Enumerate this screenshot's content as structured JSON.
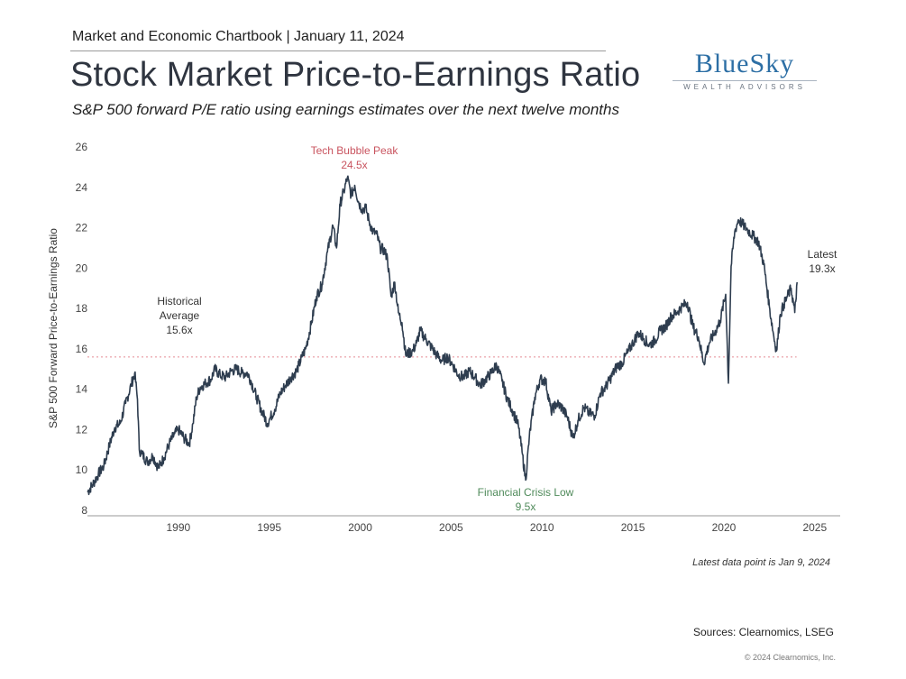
{
  "header": {
    "top_line": "Market and Economic Chartbook | January 11, 2024",
    "title": "Stock Market Price-to-Earnings Ratio",
    "subtitle": "S&P 500 forward P/E ratio using earnings estimates over the next twelve months"
  },
  "logo": {
    "main": "BlueSky",
    "sub": "WEALTH ADVISORS"
  },
  "footer": {
    "note": "Latest data point is Jan 9, 2024",
    "sources": "Sources: Clearnomics, LSEG",
    "copyright": "© 2024 Clearnomics, Inc."
  },
  "colors": {
    "line": "#2e3d4f",
    "average": "#e58a95",
    "peak": "#c9545f",
    "low": "#4f8a5a",
    "axis": "#555555"
  },
  "chart_data": {
    "type": "line",
    "ylabel": "S&P 500 Forward Price-to-Earnings Ratio",
    "xlabel": "",
    "xlim": [
      1985.0,
      2026.2
    ],
    "ylim": [
      8,
      26
    ],
    "x_ticks": [
      1990,
      1995,
      2000,
      2005,
      2010,
      2015,
      2020,
      2025
    ],
    "y_ticks": [
      8,
      10,
      12,
      14,
      16,
      18,
      20,
      22,
      24,
      26
    ],
    "average": {
      "value": 15.6,
      "label_lines": [
        "Historical",
        "Average",
        "15.6x"
      ]
    },
    "annotations": [
      {
        "id": "peak",
        "lines": [
          "Tech Bubble Peak",
          "24.5x"
        ]
      },
      {
        "id": "low",
        "lines": [
          "Financial Crisis Low",
          "9.5x"
        ]
      },
      {
        "id": "latest",
        "lines": [
          "Latest",
          "19.3x"
        ]
      }
    ],
    "series": [
      {
        "x": [
          1985.0,
          1985.3,
          1985.6,
          1985.9,
          1986.2,
          1986.5,
          1986.8,
          1987.1,
          1987.4,
          1987.6,
          1987.75,
          1987.85,
          1988.0,
          1988.3,
          1988.6,
          1988.9,
          1989.2,
          1989.5,
          1989.8,
          1990.0,
          1990.3,
          1990.6,
          1990.8,
          1991.0,
          1991.2,
          1991.5,
          1991.8,
          1992.0,
          1992.3,
          1992.6,
          1992.9,
          1993.2,
          1993.5,
          1993.8,
          1994.0,
          1994.3,
          1994.6,
          1994.9,
          1995.0,
          1995.3,
          1995.6,
          1995.9,
          1996.2,
          1996.5,
          1996.8,
          1997.0,
          1997.3,
          1997.6,
          1997.9,
          1998.2,
          1998.5,
          1998.7,
          1998.9,
          1999.1,
          1999.3,
          1999.5,
          1999.7,
          1999.9,
          2000.1,
          2000.3,
          2000.5,
          2000.7,
          2000.9,
          2001.1,
          2001.3,
          2001.5,
          2001.7,
          2001.9,
          2002.1,
          2002.3,
          2002.5,
          2002.7,
          2002.9,
          2003.1,
          2003.3,
          2003.6,
          2003.9,
          2004.2,
          2004.5,
          2004.8,
          2005.1,
          2005.4,
          2005.7,
          2006.0,
          2006.3,
          2006.6,
          2006.9,
          2007.2,
          2007.5,
          2007.8,
          2008.1,
          2008.4,
          2008.7,
          2008.9,
          2009.1,
          2009.3,
          2009.6,
          2009.9,
          2010.2,
          2010.5,
          2010.8,
          2011.1,
          2011.4,
          2011.7,
          2012.0,
          2012.3,
          2012.6,
          2012.9,
          2013.2,
          2013.5,
          2013.8,
          2014.1,
          2014.4,
          2014.7,
          2015.0,
          2015.3,
          2015.6,
          2015.9,
          2016.2,
          2016.5,
          2016.8,
          2017.1,
          2017.4,
          2017.7,
          2018.0,
          2018.3,
          2018.6,
          2018.9,
          2019.2,
          2019.5,
          2019.8,
          2020.1,
          2020.25,
          2020.4,
          2020.6,
          2020.8,
          2021.0,
          2021.3,
          2021.6,
          2021.9,
          2022.2,
          2022.5,
          2022.75,
          2022.9,
          2023.1,
          2023.3,
          2023.5,
          2023.7,
          2023.9,
          2024.03
        ],
        "y": [
          8.9,
          9.3,
          9.8,
          10.2,
          11.2,
          12.1,
          12.3,
          13.3,
          14.2,
          14.8,
          13.5,
          11.0,
          10.8,
          10.4,
          10.7,
          10.1,
          10.6,
          11.3,
          11.8,
          12.0,
          11.6,
          11.3,
          12.3,
          13.6,
          14.1,
          14.3,
          14.5,
          15.0,
          14.7,
          14.6,
          14.9,
          15.0,
          14.8,
          14.8,
          14.4,
          13.6,
          12.9,
          12.3,
          12.5,
          13.0,
          13.8,
          14.2,
          14.6,
          14.9,
          15.6,
          16.0,
          17.2,
          18.6,
          19.2,
          20.8,
          22.1,
          21.0,
          23.2,
          23.8,
          24.5,
          23.6,
          24.1,
          23.3,
          22.9,
          23.0,
          22.3,
          21.8,
          21.7,
          21.0,
          20.9,
          20.5,
          18.6,
          19.3,
          17.8,
          17.3,
          15.7,
          15.8,
          15.9,
          16.3,
          16.9,
          16.5,
          16.1,
          15.7,
          15.4,
          15.6,
          15.2,
          14.7,
          14.6,
          14.9,
          14.6,
          14.2,
          14.5,
          14.8,
          15.2,
          14.4,
          13.5,
          12.9,
          12.2,
          10.9,
          9.5,
          11.6,
          13.6,
          14.5,
          14.4,
          12.9,
          13.3,
          13.1,
          12.6,
          11.6,
          12.5,
          13.1,
          12.8,
          12.7,
          13.8,
          14.1,
          14.6,
          15.1,
          15.3,
          15.8,
          16.3,
          16.8,
          16.5,
          16.2,
          16.4,
          16.9,
          17.1,
          17.6,
          17.8,
          18.1,
          18.3,
          17.1,
          16.6,
          15.3,
          16.3,
          16.8,
          17.4,
          18.7,
          14.3,
          20.1,
          21.8,
          22.4,
          22.2,
          21.9,
          21.6,
          21.3,
          20.2,
          18.1,
          16.6,
          15.9,
          17.7,
          18.2,
          18.6,
          19.0,
          17.8,
          19.3
        ]
      }
    ]
  }
}
